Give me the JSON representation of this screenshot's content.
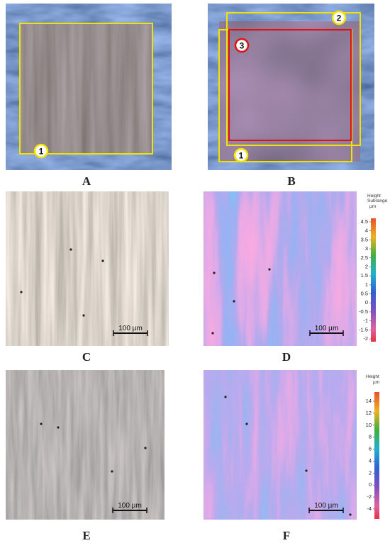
{
  "panels": [
    {
      "label": "A",
      "markers": [
        "1"
      ]
    },
    {
      "label": "B",
      "markers": [
        "2",
        "3",
        "1"
      ]
    },
    {
      "label": "C",
      "scale_bar": "100 µm"
    },
    {
      "label": "D",
      "scale_bar": "100 µm",
      "colorbar": {
        "title": "Height",
        "subtitle": "Subrange",
        "unit": "µm",
        "ticks": [
          "4.5",
          "4",
          "3.5",
          "3",
          "2.5",
          "2",
          "1.5",
          "1",
          "0.5",
          "0",
          "-0.5",
          "-1",
          "-1.5",
          "-2"
        ]
      }
    },
    {
      "label": "E",
      "scale_bar": "100 µm"
    },
    {
      "label": "F",
      "scale_bar": "100 µm",
      "colorbar": {
        "title": "Height",
        "unit": "µm",
        "ticks": [
          "14",
          "12",
          "10",
          "8",
          "6",
          "4",
          "2",
          "0",
          "-2",
          "-4"
        ]
      }
    }
  ]
}
